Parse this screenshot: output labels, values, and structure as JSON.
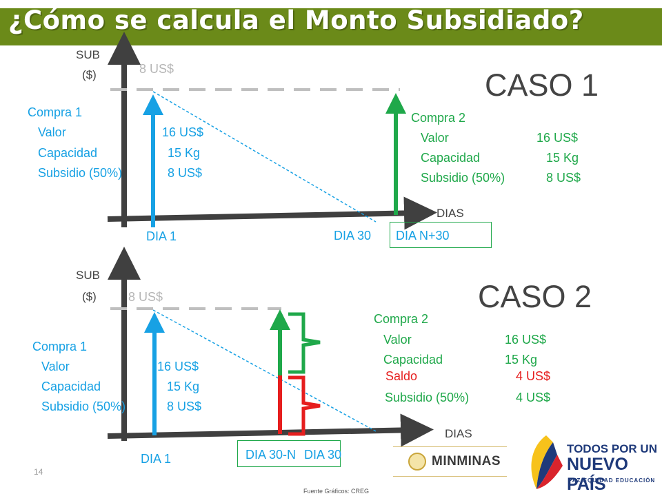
{
  "title": "¿Cómo se calcula el Monto Subsidiado?",
  "caso1": {
    "heading": "CASO 1",
    "y_axis_label_line1": "SUB",
    "y_axis_label_line2": "($)",
    "x_axis_label": "DIAS",
    "level_label": "8 US$",
    "compra1": {
      "title": "Compra 1",
      "rows": [
        {
          "label": "Valor",
          "value": "16 US$"
        },
        {
          "label": "Capacidad",
          "value": "15 Kg"
        },
        {
          "label": "Subsidio (50%)",
          "value": "8 US$"
        }
      ]
    },
    "compra2": {
      "title": "Compra 2",
      "rows": [
        {
          "label": "Valor",
          "value": "16 US$"
        },
        {
          "label": "Capacidad",
          "value": "15 Kg"
        },
        {
          "label": "Subsidio (50%)",
          "value": "8 US$"
        }
      ]
    },
    "x_labels": {
      "day1": "DIA 1",
      "day30": "DIA 30",
      "dayN30": "DIA N+30"
    }
  },
  "caso2": {
    "heading": "CASO 2",
    "y_axis_label_line1": "SUB",
    "y_axis_label_line2": "($)",
    "x_axis_label": "DIAS",
    "level_label": "8 US$",
    "compra1": {
      "title": "Compra 1",
      "rows": [
        {
          "label": "Valor",
          "value": "16 US$"
        },
        {
          "label": "Capacidad",
          "value": "15 Kg"
        },
        {
          "label": "Subsidio (50%)",
          "value": "8 US$"
        }
      ]
    },
    "compra2": {
      "title": "Compra 2",
      "rows": [
        {
          "label": "Valor",
          "value": "16 US$"
        },
        {
          "label": "Capacidad",
          "value": "15 Kg"
        },
        {
          "label": "Saldo",
          "value": "4 US$"
        },
        {
          "label": "Subsidio (50%)",
          "value": "4 US$"
        }
      ]
    },
    "x_labels": {
      "day1": "DIA 1",
      "day30n": "DIA 30-N",
      "day30": "DIA 30"
    }
  },
  "page_number": "14",
  "source": "Fuente Gráficos: CREG",
  "logos": {
    "minminas": "MINMINAS",
    "tpun_line1": "TODOS POR UN",
    "tpun_line2": "NUEVO PAÍS",
    "tpun_line3": "PAZ EQUIDAD EDUCACIÓN"
  },
  "colors": {
    "title_bg": "#6b8a19",
    "blue": "#17a1e4",
    "green": "#1fa84a",
    "red": "#e61e1e",
    "axis": "#404040",
    "dashed": "#bfbfbf"
  }
}
